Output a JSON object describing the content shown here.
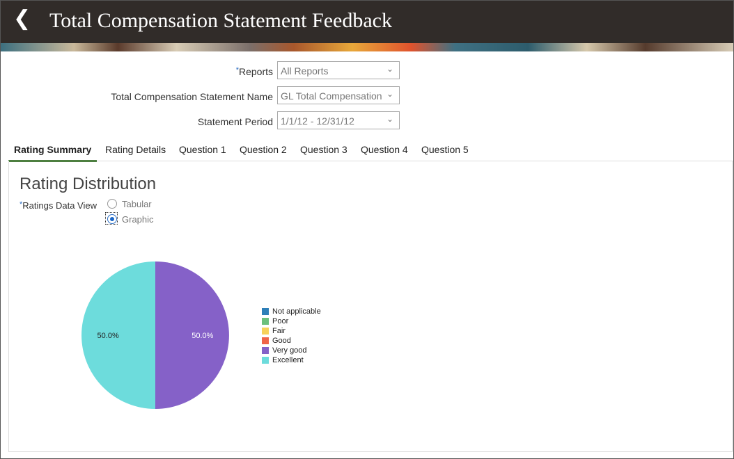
{
  "header": {
    "title": "Total Compensation Statement Feedback",
    "back_icon": "chevron-left-icon"
  },
  "form": {
    "reports": {
      "label": "Reports",
      "value": "All Reports"
    },
    "statement_name": {
      "label": "Total Compensation Statement Name",
      "value": "GL Total Compensation"
    },
    "period": {
      "label": "Statement Period",
      "value": "1/1/12 - 12/31/12"
    },
    "required_mark": "*"
  },
  "tabs": [
    "Rating Summary",
    "Rating Details",
    "Question 1",
    "Question 2",
    "Question 3",
    "Question 4",
    "Question 5"
  ],
  "section": {
    "title": "Rating Distribution",
    "view_label": "Ratings Data View",
    "options": [
      "Tabular",
      "Graphic"
    ],
    "selected": "Graphic"
  },
  "chart_data": {
    "type": "pie",
    "legend_position": "right",
    "categories": [
      "Not applicable",
      "Poor",
      "Fair",
      "Good",
      "Very good",
      "Excellent"
    ],
    "values": [
      0,
      0,
      0,
      0,
      50,
      50
    ],
    "data_labels": [
      "",
      "",
      "",
      "",
      "50.0%",
      "50.0%"
    ],
    "colors": [
      "#2e7fb8",
      "#6bc07d",
      "#f7d25b",
      "#ef6449",
      "#8561c8",
      "#6ddcdc"
    ]
  }
}
